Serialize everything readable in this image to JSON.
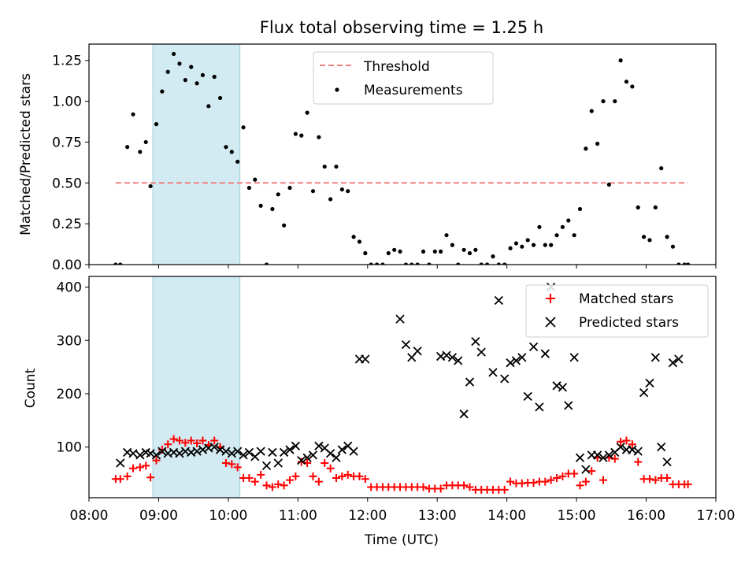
{
  "chart_data": [
    {
      "type": "scatter",
      "title": "Flux total observing time = 1.25 h",
      "xlabel": "",
      "ylabel": "Matched/Predicted stars",
      "xlim": [
        "08:00",
        "17:00"
      ],
      "ylim": [
        0,
        1.35
      ],
      "yticks": [
        "0.00",
        "0.25",
        "0.50",
        "0.75",
        "1.00",
        "1.25"
      ],
      "highlight_window": [
        "08:55",
        "10:10"
      ],
      "highlight_color": "#add8e6",
      "legend": {
        "placement": "top-center",
        "entries": [
          "Threshold",
          "Measurements"
        ]
      },
      "series": [
        {
          "name": "Threshold",
          "style": "dashed-line",
          "color": "#f08080",
          "x": [
            "08:23",
            "16:36"
          ],
          "y": [
            0.5,
            0.5
          ]
        },
        {
          "name": "Measurements",
          "style": "dot",
          "color": "#000000",
          "x": [
            "08:23",
            "08:27",
            "08:33",
            "08:38",
            "08:44",
            "08:49",
            "08:53",
            "08:58",
            "09:03",
            "09:08",
            "09:13",
            "09:18",
            "09:23",
            "09:28",
            "09:33",
            "09:38",
            "09:43",
            "09:48",
            "09:53",
            "09:58",
            "10:03",
            "10:08",
            "10:13",
            "10:18",
            "10:23",
            "10:28",
            "10:33",
            "10:38",
            "10:43",
            "10:48",
            "10:53",
            "10:58",
            "11:03",
            "11:08",
            "11:13",
            "11:18",
            "11:23",
            "11:28",
            "11:33",
            "11:38",
            "11:43",
            "11:48",
            "11:53",
            "11:58",
            "12:03",
            "12:08",
            "12:13",
            "12:18",
            "12:23",
            "12:28",
            "12:33",
            "12:38",
            "12:43",
            "12:48",
            "12:53",
            "12:58",
            "13:03",
            "13:08",
            "13:13",
            "13:18",
            "13:23",
            "13:28",
            "13:33",
            "13:38",
            "13:43",
            "13:48",
            "13:53",
            "13:58",
            "14:03",
            "14:08",
            "14:13",
            "14:18",
            "14:23",
            "14:28",
            "14:33",
            "14:38",
            "14:43",
            "14:48",
            "14:53",
            "14:58",
            "15:03",
            "15:08",
            "15:13",
            "15:18",
            "15:23",
            "15:28",
            "15:33",
            "15:38",
            "15:43",
            "15:48",
            "15:53",
            "15:58",
            "16:03",
            "16:08",
            "16:13",
            "16:18",
            "16:23",
            "16:28",
            "16:33",
            "16:36"
          ],
          "y": [
            0.0,
            0.0,
            0.72,
            0.92,
            0.69,
            0.75,
            0.48,
            0.86,
            1.06,
            1.18,
            1.29,
            1.23,
            1.13,
            1.21,
            1.11,
            1.16,
            0.97,
            1.15,
            1.02,
            0.72,
            0.69,
            0.63,
            0.84,
            0.47,
            0.52,
            0.36,
            0.0,
            0.34,
            0.43,
            0.24,
            0.47,
            0.8,
            0.79,
            0.93,
            0.45,
            0.78,
            0.6,
            0.4,
            0.6,
            0.46,
            0.45,
            0.17,
            0.14,
            0.07,
            0.0,
            0.0,
            0.0,
            0.07,
            0.09,
            0.08,
            0.0,
            0.0,
            0.0,
            0.08,
            0.0,
            0.08,
            0.08,
            0.18,
            0.12,
            0.0,
            0.09,
            0.07,
            0.09,
            0.0,
            0.0,
            0.05,
            0.0,
            0.0,
            0.1,
            0.13,
            0.11,
            0.15,
            0.12,
            0.23,
            0.12,
            0.12,
            0.18,
            0.23,
            0.27,
            0.18,
            0.34,
            0.71,
            0.94,
            0.74,
            1.0,
            0.49,
            1.0,
            1.25,
            1.12,
            1.09,
            0.35,
            0.17,
            0.15,
            0.35,
            0.59,
            0.17,
            0.11,
            0.0,
            0.0,
            0.0
          ]
        }
      ]
    },
    {
      "type": "scatter",
      "title": "",
      "xlabel": "Time (UTC)",
      "ylabel": "Count",
      "xlim": [
        "08:00",
        "17:00"
      ],
      "ylim": [
        5,
        420
      ],
      "yticks": [
        "100",
        "200",
        "300",
        "400"
      ],
      "xticks": [
        "08:00",
        "09:00",
        "10:00",
        "11:00",
        "12:00",
        "13:00",
        "14:00",
        "15:00",
        "16:00",
        "17:00"
      ],
      "highlight_window": [
        "08:55",
        "10:10"
      ],
      "highlight_color": "#add8e6",
      "legend": {
        "placement": "top-right",
        "entries": [
          "Matched stars",
          "Predicted stars"
        ]
      },
      "series": [
        {
          "name": "Matched stars",
          "marker": "+",
          "color": "#ff0000",
          "x": [
            "08:23",
            "08:27",
            "08:33",
            "08:38",
            "08:44",
            "08:49",
            "08:53",
            "08:58",
            "09:03",
            "09:08",
            "09:13",
            "09:18",
            "09:23",
            "09:28",
            "09:33",
            "09:38",
            "09:43",
            "09:48",
            "09:53",
            "09:58",
            "10:03",
            "10:08",
            "10:13",
            "10:18",
            "10:23",
            "10:28",
            "10:33",
            "10:38",
            "10:43",
            "10:48",
            "10:53",
            "10:58",
            "11:03",
            "11:08",
            "11:13",
            "11:18",
            "11:23",
            "11:28",
            "11:33",
            "11:38",
            "11:43",
            "11:48",
            "11:53",
            "11:58",
            "12:03",
            "12:08",
            "12:13",
            "12:18",
            "12:23",
            "12:28",
            "12:33",
            "12:38",
            "12:43",
            "12:48",
            "12:53",
            "12:58",
            "13:03",
            "13:08",
            "13:13",
            "13:18",
            "13:23",
            "13:28",
            "13:33",
            "13:38",
            "13:43",
            "13:48",
            "13:53",
            "13:58",
            "14:03",
            "14:08",
            "14:13",
            "14:18",
            "14:23",
            "14:28",
            "14:33",
            "14:38",
            "14:43",
            "14:48",
            "14:53",
            "14:58",
            "15:03",
            "15:08",
            "15:13",
            "15:18",
            "15:23",
            "15:28",
            "15:33",
            "15:38",
            "15:43",
            "15:48",
            "15:53",
            "15:58",
            "16:03",
            "16:08",
            "16:13",
            "16:18",
            "16:23",
            "16:28",
            "16:33",
            "16:36"
          ],
          "y": [
            40,
            40,
            45,
            60,
            62,
            65,
            43,
            75,
            95,
            105,
            115,
            112,
            108,
            112,
            107,
            112,
            104,
            112,
            100,
            70,
            68,
            62,
            42,
            42,
            35,
            48,
            28,
            25,
            30,
            28,
            38,
            45,
            72,
            70,
            45,
            35,
            70,
            60,
            42,
            45,
            48,
            45,
            45,
            40,
            25,
            25,
            25,
            25,
            25,
            25,
            25,
            25,
            25,
            25,
            22,
            22,
            22,
            28,
            28,
            28,
            28,
            25,
            20,
            20,
            20,
            20,
            20,
            20,
            35,
            32,
            32,
            33,
            33,
            35,
            35,
            38,
            42,
            45,
            50,
            50,
            28,
            35,
            55,
            80,
            38,
            80,
            78,
            110,
            112,
            105,
            72,
            40,
            40,
            38,
            42,
            42,
            30,
            30,
            30,
            30
          ]
        },
        {
          "name": "Predicted stars",
          "marker": "x",
          "color": "#000000",
          "x": [
            "08:27",
            "08:33",
            "08:38",
            "08:44",
            "08:49",
            "08:53",
            "08:58",
            "09:03",
            "09:08",
            "09:13",
            "09:18",
            "09:23",
            "09:28",
            "09:33",
            "09:38",
            "09:43",
            "09:48",
            "09:53",
            "09:58",
            "10:03",
            "10:08",
            "10:13",
            "10:18",
            "10:23",
            "10:28",
            "10:33",
            "10:38",
            "10:43",
            "10:48",
            "10:53",
            "10:58",
            "11:03",
            "11:08",
            "11:13",
            "11:18",
            "11:23",
            "11:28",
            "11:33",
            "11:38",
            "11:43",
            "11:48",
            "11:53",
            "11:58",
            "12:28",
            "12:33",
            "12:38",
            "12:43",
            "13:03",
            "13:08",
            "13:13",
            "13:18",
            "13:23",
            "13:28",
            "13:33",
            "13:38",
            "13:48",
            "13:53",
            "13:58",
            "14:03",
            "14:08",
            "14:13",
            "14:18",
            "14:23",
            "14:28",
            "14:33",
            "14:38",
            "14:43",
            "14:48",
            "14:53",
            "14:58",
            "15:03",
            "15:08",
            "15:13",
            "15:18",
            "15:23",
            "15:28",
            "15:33",
            "15:38",
            "15:43",
            "15:48",
            "15:53",
            "15:58",
            "16:03",
            "16:08",
            "16:13",
            "16:18",
            "16:23",
            "16:28"
          ],
          "y": [
            70,
            90,
            88,
            85,
            90,
            88,
            85,
            92,
            88,
            90,
            88,
            92,
            90,
            92,
            95,
            98,
            100,
            95,
            92,
            88,
            92,
            85,
            90,
            82,
            92,
            65,
            90,
            70,
            90,
            95,
            102,
            75,
            80,
            85,
            102,
            98,
            88,
            80,
            95,
            102,
            92,
            265,
            265,
            340,
            292,
            268,
            280,
            270,
            272,
            268,
            262,
            162,
            222,
            298,
            278,
            240,
            375,
            228,
            258,
            262,
            268,
            195,
            288,
            175,
            275,
            400,
            215,
            212,
            178,
            268,
            80,
            58,
            85,
            85,
            80,
            85,
            90,
            100,
            95,
            95,
            92,
            202,
            220,
            268,
            100,
            72,
            258,
            265
          ]
        }
      ]
    }
  ]
}
